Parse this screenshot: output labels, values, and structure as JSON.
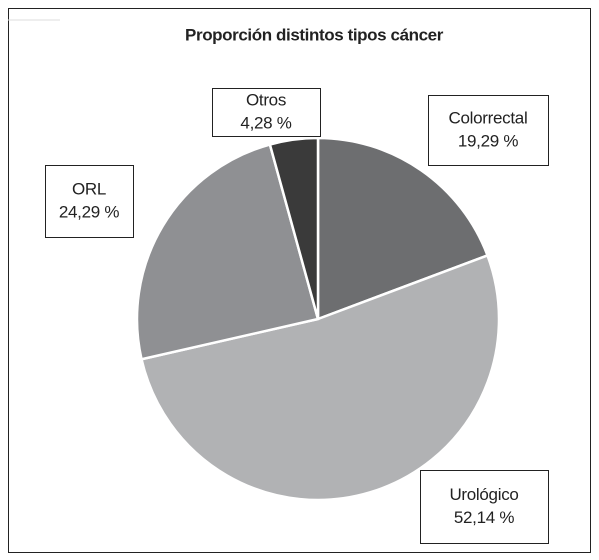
{
  "chart_data": {
    "type": "pie",
    "title": "Proporción distintos tipos cáncer",
    "categories": [
      "Colorrectal",
      "Urológico",
      "ORL",
      "Otros"
    ],
    "values": [
      19.29,
      52.14,
      24.29,
      4.28
    ],
    "value_labels": [
      "19,29 %",
      "52,14 %",
      "24,29 %",
      "4,28 %"
    ],
    "colors": [
      "#6d6e70",
      "#b1b2b4",
      "#8f9093",
      "#3a3a3a"
    ]
  }
}
